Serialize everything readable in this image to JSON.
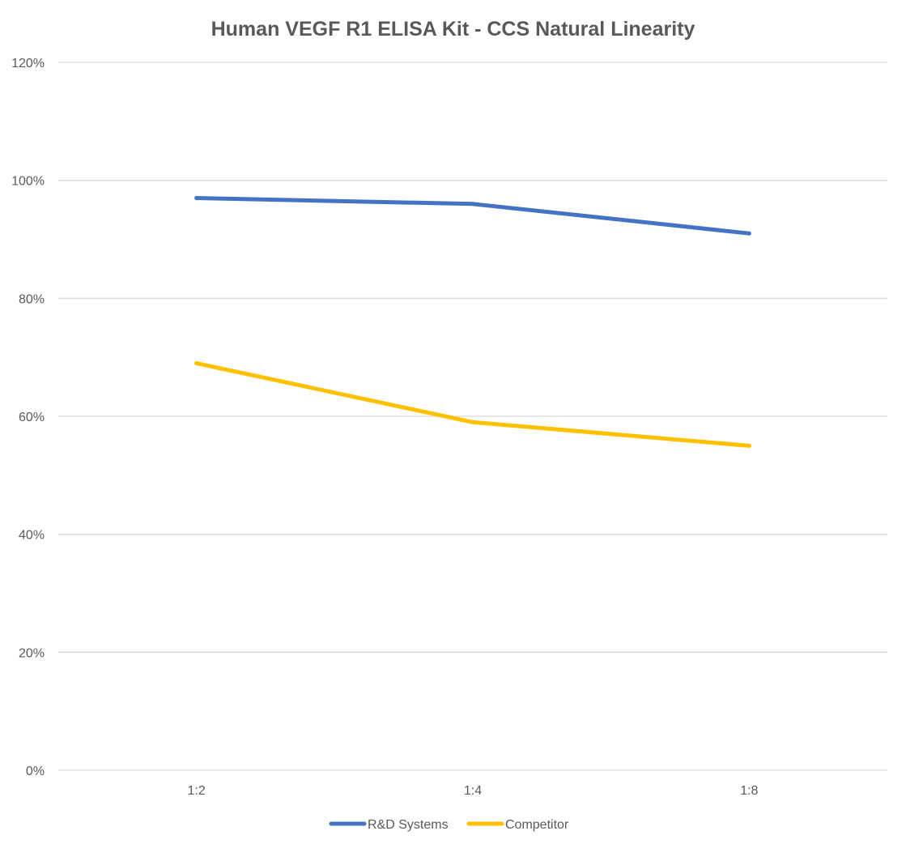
{
  "chart_data": {
    "type": "line",
    "title": "Human VEGF R1 ELISA Kit - CCS Natural Linearity",
    "xlabel": "",
    "ylabel": "",
    "categories": [
      "1:2",
      "1:4",
      "1:8"
    ],
    "y_tick_values": [
      0,
      20,
      40,
      60,
      80,
      100,
      120
    ],
    "y_tick_labels": [
      "0%",
      "20%",
      "40%",
      "60%",
      "80%",
      "100%",
      "120%"
    ],
    "ylim": [
      0,
      120
    ],
    "grid": true,
    "legend_position": "bottom",
    "series": [
      {
        "name": "R&D Systems",
        "color": "#4472c4",
        "values": [
          97,
          96,
          91
        ]
      },
      {
        "name": "Competitor",
        "color": "#ffc000",
        "values": [
          69,
          59,
          55
        ]
      }
    ]
  }
}
